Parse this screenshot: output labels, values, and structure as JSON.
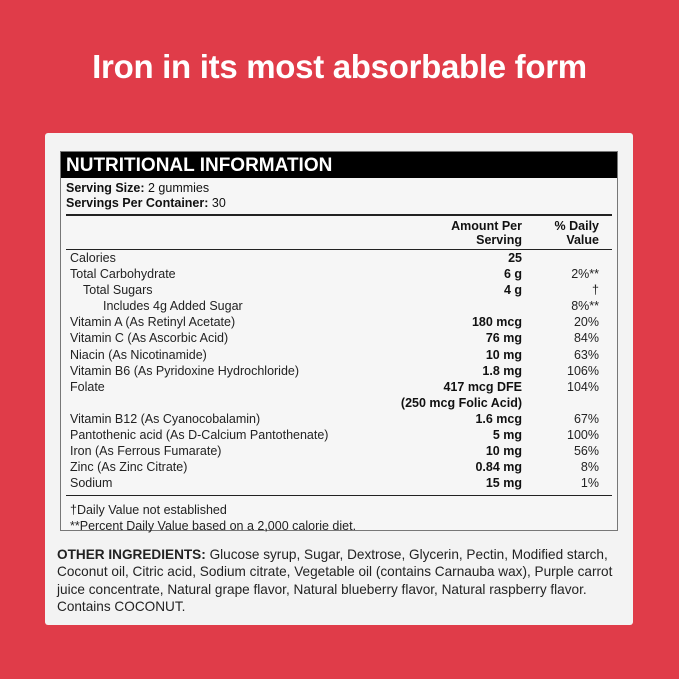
{
  "headline": "Iron in its most absorbable form",
  "colors": {
    "background": "#e03c49",
    "card": "#f3f3f3",
    "header_bar": "#000000"
  },
  "panel": {
    "title": "NUTRITIONAL INFORMATION",
    "serving_size_label": "Serving Size:",
    "serving_size_value": "2 gummies",
    "servings_label": "Servings Per Container:",
    "servings_value": "30",
    "col_amount": "Amount Per Serving",
    "col_dv": "% Daily Value",
    "rows": [
      {
        "name": "Calories",
        "amount": "25",
        "dv": "",
        "indent": 0
      },
      {
        "name": "Total Carbohydrate",
        "amount": "6 g",
        "dv": "2%**",
        "indent": 0
      },
      {
        "name": "Total Sugars",
        "amount": "4 g",
        "dv": "†",
        "indent": 1
      },
      {
        "name": "Includes 4g Added Sugar",
        "amount": "",
        "dv": "8%**",
        "indent": 2
      },
      {
        "name": "Vitamin A (As Retinyl Acetate)",
        "amount": "180 mcg",
        "dv": "20%",
        "indent": 0
      },
      {
        "name": "Vitamin C (As Ascorbic Acid)",
        "amount": "76 mg",
        "dv": "84%",
        "indent": 0
      },
      {
        "name": "Niacin (As Nicotinamide)",
        "amount": "10 mg",
        "dv": "63%",
        "indent": 0
      },
      {
        "name": "Vitamin B6 (As Pyridoxine Hydrochloride)",
        "amount": "1.8 mg",
        "dv": "106%",
        "indent": 0
      },
      {
        "name": "Folate",
        "amount": "417 mcg DFE",
        "dv": "104%",
        "indent": 0
      },
      {
        "name": "",
        "amount": "(250 mcg Folic Acid)",
        "dv": "",
        "indent": 0
      },
      {
        "name": "Vitamin B12 (As Cyanocobalamin)",
        "amount": "1.6 mcg",
        "dv": "67%",
        "indent": 0
      },
      {
        "name": "Pantothenic acid (As D-Calcium Pantothenate)",
        "amount": "5 mg",
        "dv": "100%",
        "indent": 0
      },
      {
        "name": "Iron (As Ferrous Fumarate)",
        "amount": "10 mg",
        "dv": "56%",
        "indent": 0
      },
      {
        "name": "Zinc (As Zinc Citrate)",
        "amount": "0.84 mg",
        "dv": "8%",
        "indent": 0
      },
      {
        "name": "Sodium",
        "amount": "15 mg",
        "dv": "1%",
        "indent": 0
      }
    ],
    "footnote_1": "†Daily Value not established",
    "footnote_2": "**Percent Daily Value based on a 2,000 calorie diet."
  },
  "ingredients": {
    "label": "OTHER INGREDIENTS:",
    "text": "Glucose syrup, Sugar, Dextrose, Glycerin, Pectin, Modified starch, Coconut oil, Citric acid, Sodium citrate, Vegetable oil (contains Carnauba wax), Purple carrot juice concentrate, Natural grape flavor, Natural blueberry flavor, Natural raspberry flavor. Contains COCONUT."
  }
}
